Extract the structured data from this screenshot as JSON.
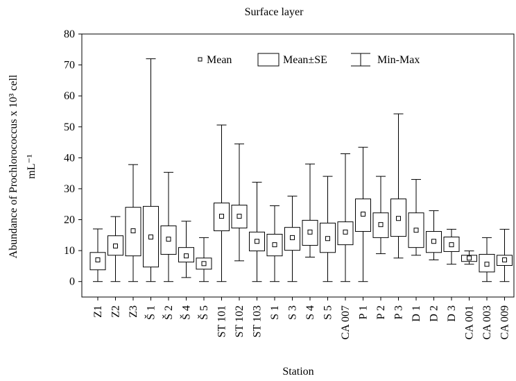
{
  "chart_data": {
    "type": "box",
    "title": "Surface layer",
    "xlabel": "Station",
    "ylabel": [
      "Abundance of Prochlorococcus x 10³ cell",
      "mL⁻¹"
    ],
    "categories": [
      "Z1",
      "Z2",
      "Z3",
      "Š 1",
      "Š 2",
      "Š 4",
      "Š 5",
      "ST 101",
      "ST 102",
      "ST 103",
      "S 1",
      "S 3",
      "S 4",
      "S 5",
      "CA 007",
      "P 1",
      "P 2",
      "P 3",
      "D 1",
      "D 2",
      "D 3",
      "CA 001",
      "CA 003",
      "CA 009"
    ],
    "mean": [
      7,
      11.5,
      16.4,
      14.4,
      13.7,
      8.3,
      5.8,
      21.1,
      21.1,
      13,
      11.9,
      14.2,
      16,
      13.9,
      16,
      21.8,
      18.4,
      20.4,
      16.6,
      13,
      11.9,
      7.6,
      5.6,
      7
    ],
    "se_low": [
      3.8,
      8.5,
      8.3,
      4.7,
      8.8,
      6.3,
      4,
      16.4,
      17.3,
      9.9,
      8.3,
      10.1,
      11.7,
      9.4,
      11.9,
      16.2,
      14.2,
      14.6,
      11,
      9.4,
      9.7,
      6.5,
      3.1,
      5.2
    ],
    "se_high": [
      9.4,
      14.8,
      24,
      24.3,
      18,
      11,
      7.6,
      25.4,
      24.7,
      16,
      15.3,
      17.5,
      19.8,
      18.9,
      19.3,
      26.7,
      22.2,
      26.7,
      22.2,
      16.2,
      14.4,
      8.5,
      8.8,
      8.5
    ],
    "min": [
      0,
      0,
      0,
      0,
      0,
      1.3,
      0,
      0,
      6.7,
      0,
      0,
      0,
      7.9,
      0,
      0,
      0,
      9,
      7.6,
      8.5,
      7,
      5.6,
      5.6,
      0,
      0
    ],
    "max": [
      17,
      21,
      37.8,
      72,
      35.3,
      19.5,
      14.2,
      50.6,
      44.5,
      32.1,
      24.5,
      27.6,
      38,
      34,
      41.3,
      43.4,
      34,
      54.2,
      33,
      22.9,
      16.9,
      9.9,
      14.2,
      16.9
    ],
    "legend": {
      "mean": "Mean",
      "se": "Mean±SE",
      "range": "Min-Max"
    },
    "ylim": [
      -5,
      80
    ],
    "yticks": [
      0,
      10,
      20,
      30,
      40,
      50,
      60,
      70,
      80
    ],
    "color": "#000000"
  }
}
